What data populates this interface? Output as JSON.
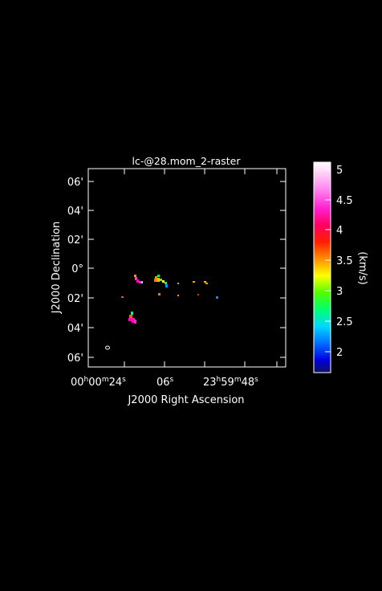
{
  "plot": {
    "title": "lc-@28.mom_2-raster",
    "xlabel": "J2000 Right Ascension",
    "ylabel": "J2000 Declination",
    "x_ticks": {
      "t1": {
        "main": "00",
        "h": "h",
        "mid": "00",
        "m": "m",
        "end": "24",
        "s": "s"
      },
      "t2": {
        "main": "06",
        "s": "s"
      },
      "t3": {
        "main": "23",
        "h": "h",
        "mid": "59",
        "m": "m",
        "end": "48",
        "s": "s"
      }
    },
    "y_ticks": [
      "06'",
      "04'",
      "02'",
      "0°",
      "02'",
      "04'",
      "06'"
    ]
  },
  "colorbar": {
    "unit": "(km/s)",
    "ticks": [
      "5",
      "4.5",
      "4",
      "3.5",
      "3",
      "2.5",
      "2"
    ],
    "min": 1.7,
    "max": 5.1
  },
  "colors": {
    "background": "#000000",
    "axes": "#ffffff"
  }
}
